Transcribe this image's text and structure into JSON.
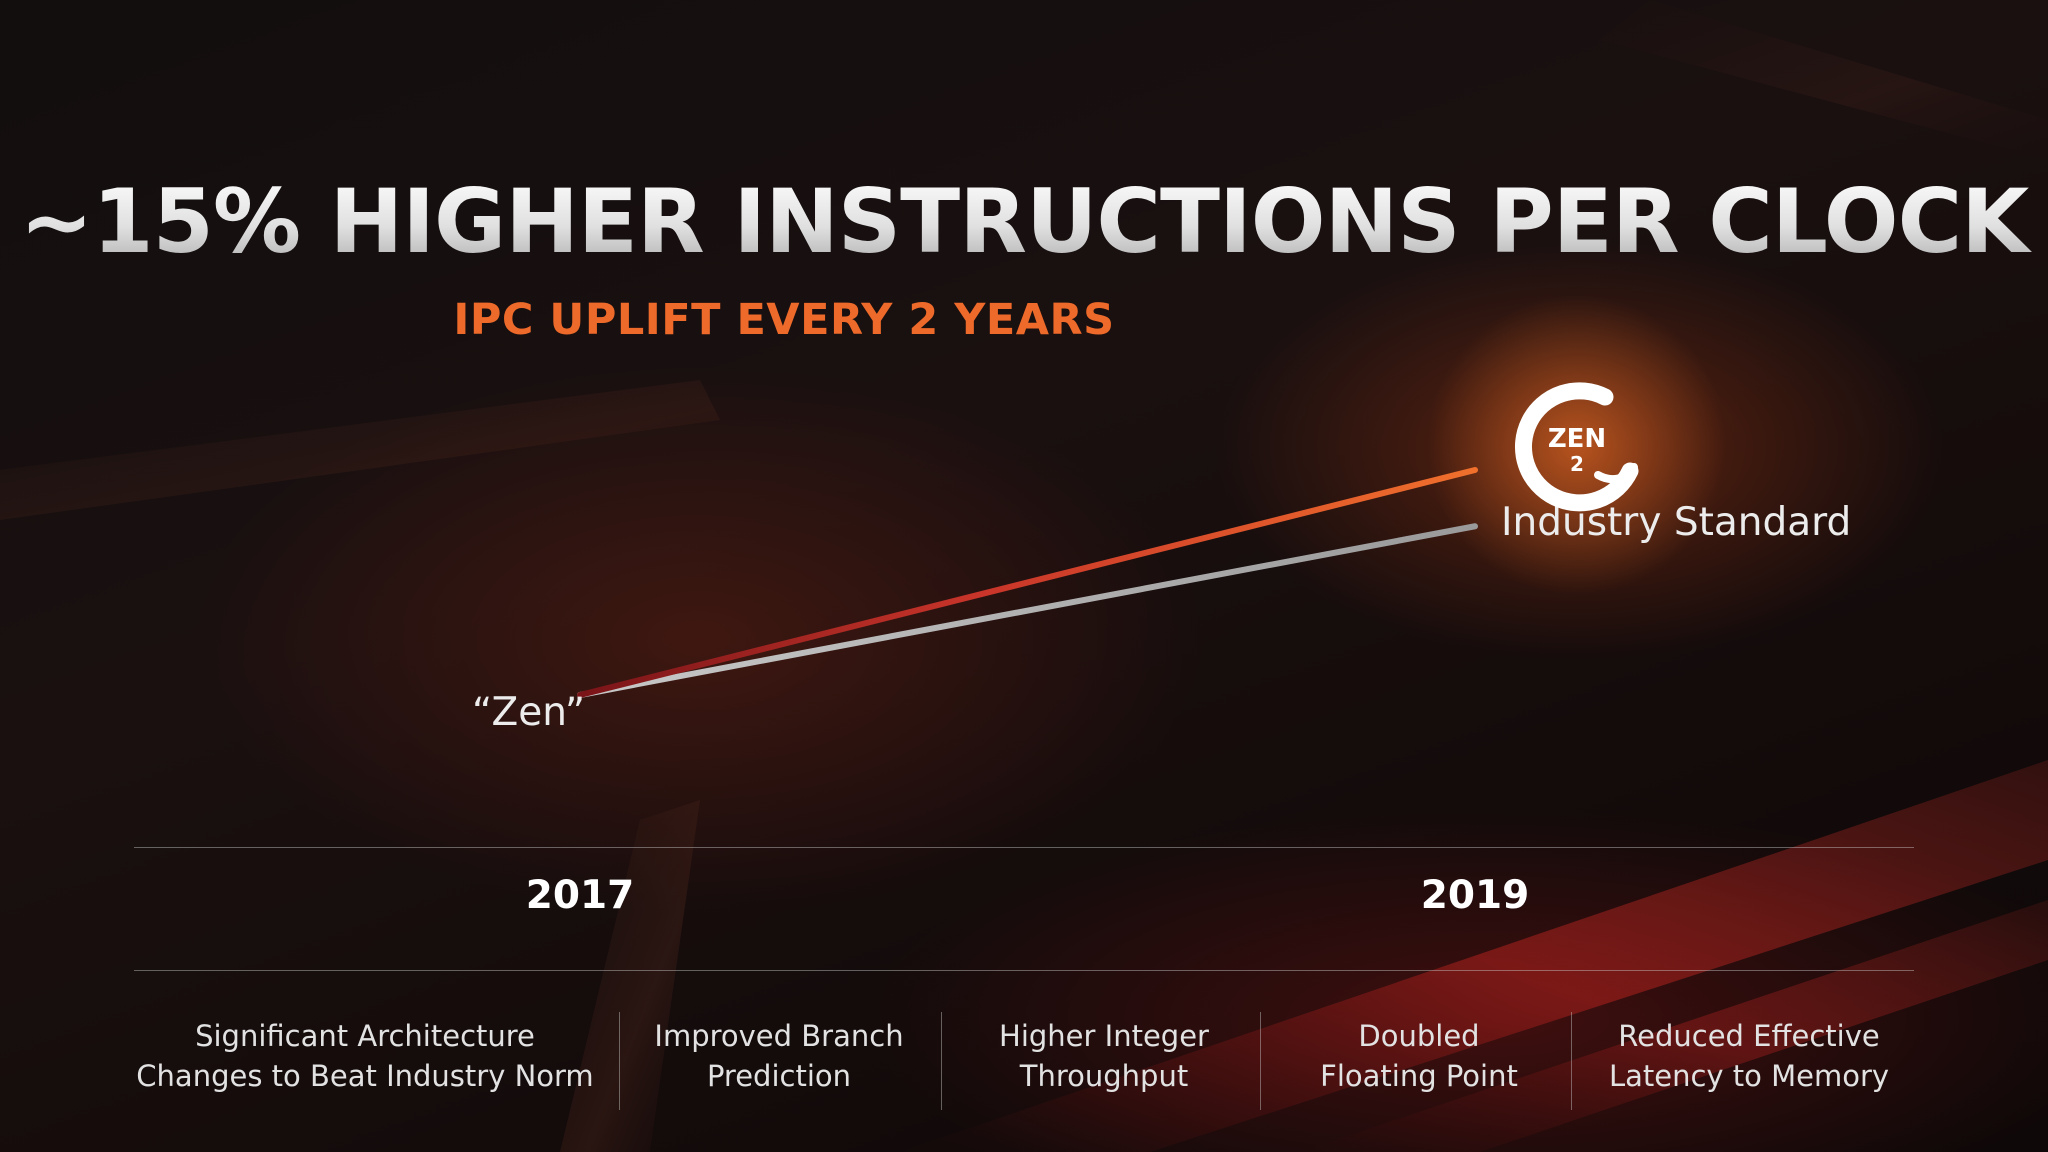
{
  "slide": {
    "title": "~15% HIGHER INSTRUCTIONS PER CLOCK",
    "subtitle": "IPC UPLIFT EVERY 2 YEARS"
  },
  "chart_data": {
    "type": "line",
    "x": [
      "2017",
      "2019"
    ],
    "series": [
      {
        "name": "Zen 2",
        "values": [
          1.0,
          1.8
        ],
        "color": "#ee6a2a"
      },
      {
        "name": "Industry Standard",
        "values": [
          1.0,
          1.6
        ],
        "color": "#b5b5b5"
      }
    ],
    "start_label": "“Zen”",
    "end_labels": [
      "Industry Standard"
    ],
    "logo": {
      "icon": "zen-2-logo-icon",
      "text": "ZEN",
      "subtext": "2"
    },
    "ylim": [
      1.0,
      1.8
    ],
    "grid": false,
    "title": "",
    "xlabel": "",
    "ylabel": ""
  },
  "features": [
    {
      "line1": "Significant Architecture",
      "line2": "Changes to Beat Industry Norm"
    },
    {
      "line1": "Improved Branch",
      "line2": "Prediction"
    },
    {
      "line1": "Higher Integer",
      "line2": "Throughput"
    },
    {
      "line1": "Doubled",
      "line2": "Floating Point"
    },
    {
      "line1": "Reduced Effective",
      "line2": "Latency to Memory"
    }
  ],
  "colors": {
    "accent": "#ee6a2a",
    "industry_line": "#b5b5b5",
    "text": "#ececec",
    "background": "#110c0c"
  }
}
